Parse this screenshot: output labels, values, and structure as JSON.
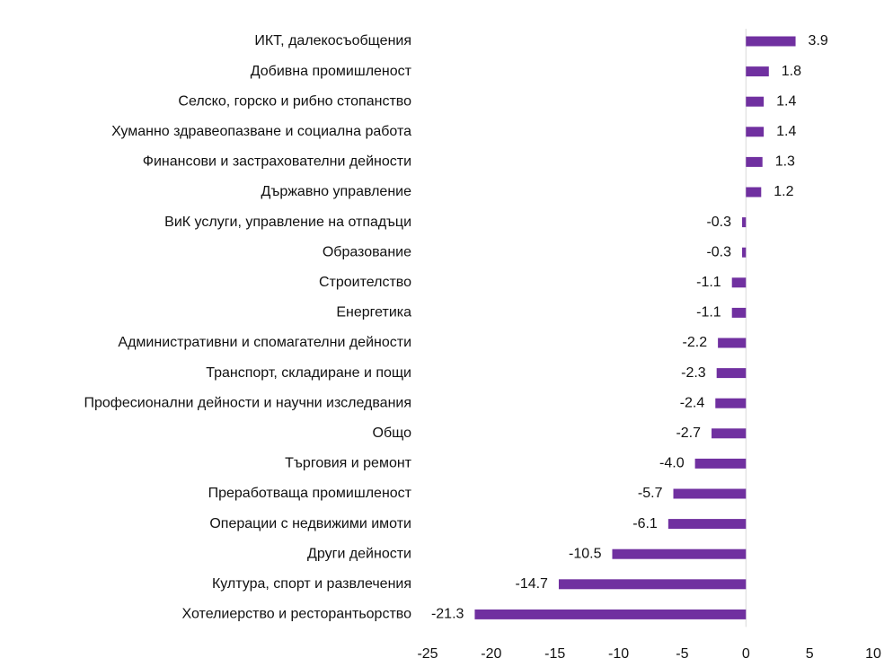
{
  "chart_data": {
    "type": "bar",
    "orientation": "horizontal",
    "color": "#7030A0",
    "categories": [
      "ИКТ, далекосъобщения",
      "Добивна промишленост",
      "Селско, горско и рибно стопанство",
      "Хуманно здравеопазване и социална работа",
      "Финансови и застрахователни дейности",
      "Държавно управление",
      "ВиК услуги, управление на отпадъци",
      "Образование",
      "Строителство",
      "Енергетика",
      "Административни и спомагателни дейности",
      "Транспорт, складиране и пощи",
      "Професионални дейности и научни изследвания",
      "Общо",
      "Търговия и ремонт",
      "Преработваща промишленост",
      "Операции с недвижими имоти",
      "Други дейности",
      "Култура, спорт и развлечения",
      "Хотелиерство и ресторантьорство"
    ],
    "values": [
      3.9,
      1.8,
      1.4,
      1.4,
      1.3,
      1.2,
      -0.3,
      -0.3,
      -1.1,
      -1.1,
      -2.2,
      -2.3,
      -2.4,
      -2.7,
      -4.0,
      -5.7,
      -6.1,
      -10.5,
      -14.7,
      -21.3
    ],
    "value_labels": [
      "3.9",
      "1.8",
      "1.4",
      "1.4",
      "1.3",
      "1.2",
      "-0.3",
      "-0.3",
      "-1.1",
      "-1.1",
      "-2.2",
      "-2.3",
      "-2.4",
      "-2.7",
      "-4.0",
      "-5.7",
      "-6.1",
      "-10.5",
      "-14.7",
      "-21.3"
    ],
    "xlim": [
      -25,
      10
    ],
    "x_ticks": [
      -25,
      -20,
      -15,
      -10,
      -5,
      0,
      5,
      10
    ],
    "grid": false,
    "title": "",
    "xlabel": "",
    "ylabel": ""
  }
}
